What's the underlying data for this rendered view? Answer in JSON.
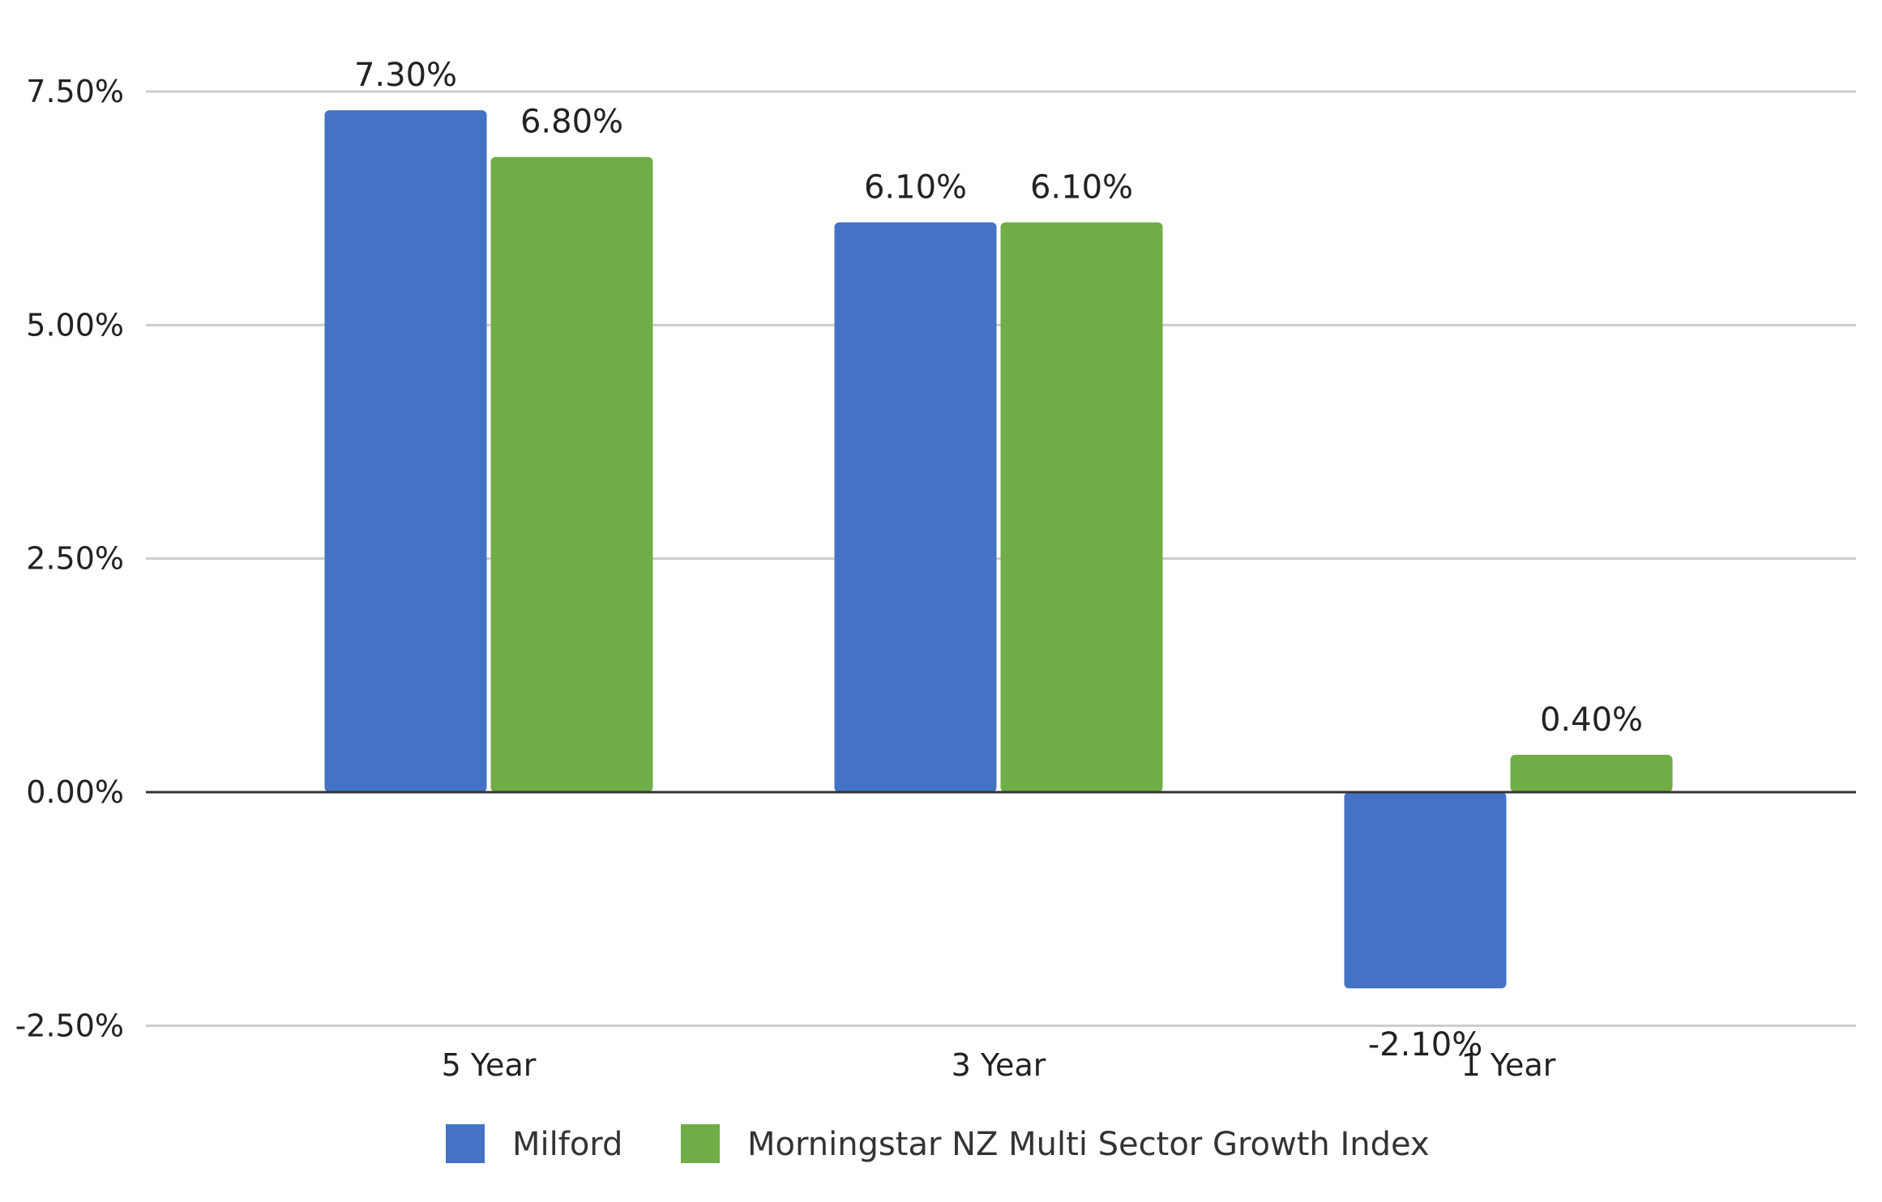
{
  "chart_data": {
    "type": "bar",
    "categories": [
      "5 Year",
      "3 Year",
      "1 Year"
    ],
    "series": [
      {
        "name": "Milford",
        "values": [
          7.3,
          6.1,
          -2.1
        ],
        "labels": [
          "7.30%",
          "6.10%",
          "-2.10%"
        ],
        "color": "#4472c4"
      },
      {
        "name": "Morningstar NZ Multi Sector Growth Index",
        "values": [
          6.8,
          6.1,
          0.4
        ],
        "labels": [
          "6.80%",
          "6.10%",
          "0.40%"
        ],
        "color": "#70ad47"
      }
    ],
    "ylim": [
      -2.5,
      7.5
    ],
    "yticks": [
      7.5,
      5.0,
      2.5,
      0.0,
      -2.5
    ],
    "ytick_labels": [
      "7.50%",
      "5.00%",
      "2.50%",
      "0.00%",
      "-2.50%"
    ],
    "grid": true,
    "legend_position": "bottom",
    "gridline_color": "#cccccc",
    "zero_line_color": "#333333"
  }
}
